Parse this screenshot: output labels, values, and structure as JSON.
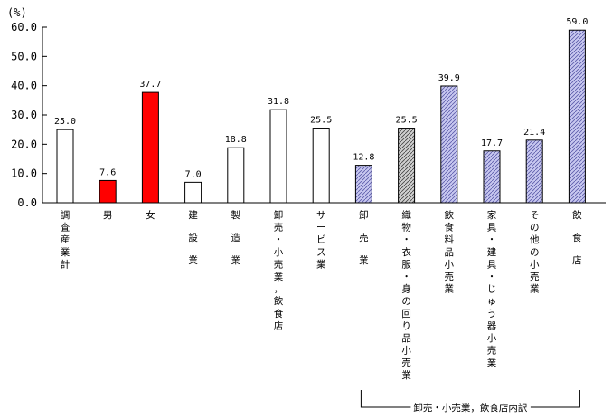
{
  "chart_data": {
    "type": "bar",
    "unit_label": "(%)",
    "ylim": [
      0,
      60
    ],
    "yticks": [
      "0.0",
      "10.0",
      "20.0",
      "30.0",
      "40.0",
      "50.0",
      "60.0"
    ],
    "categories": [
      "調査産業計",
      "男",
      "女",
      "建設業",
      "製造業",
      "卸売・小売業，飲食店",
      "サービス業",
      "卸売業",
      "織物・衣服・身の回り品小売業",
      "飲食料品小売業",
      "家具・建具・じゅう器小売業",
      "その他の小売業",
      "飲食店"
    ],
    "values": [
      25.0,
      7.6,
      37.7,
      7.0,
      18.8,
      31.8,
      25.5,
      12.8,
      25.5,
      39.9,
      17.7,
      21.4,
      59.0
    ],
    "value_labels": [
      "25.0",
      "7.6",
      "37.7",
      "7.0",
      "18.8",
      "31.8",
      "25.5",
      "12.8",
      "25.5",
      "39.9",
      "17.7",
      "21.4",
      "59.0"
    ],
    "fills": [
      "white",
      "red",
      "red",
      "white",
      "white",
      "white",
      "white",
      "lavender",
      "gray",
      "lavender",
      "lavender",
      "lavender",
      "lavender"
    ],
    "colors": {
      "white": "#ffffff",
      "red": "#ff0000",
      "lavender": "#c8c8f0",
      "gray": "#bdbdbd"
    },
    "grid": false,
    "bracket_label": "卸売・小売業，飲食店内訳",
    "bracket_range": [
      7,
      12
    ]
  }
}
